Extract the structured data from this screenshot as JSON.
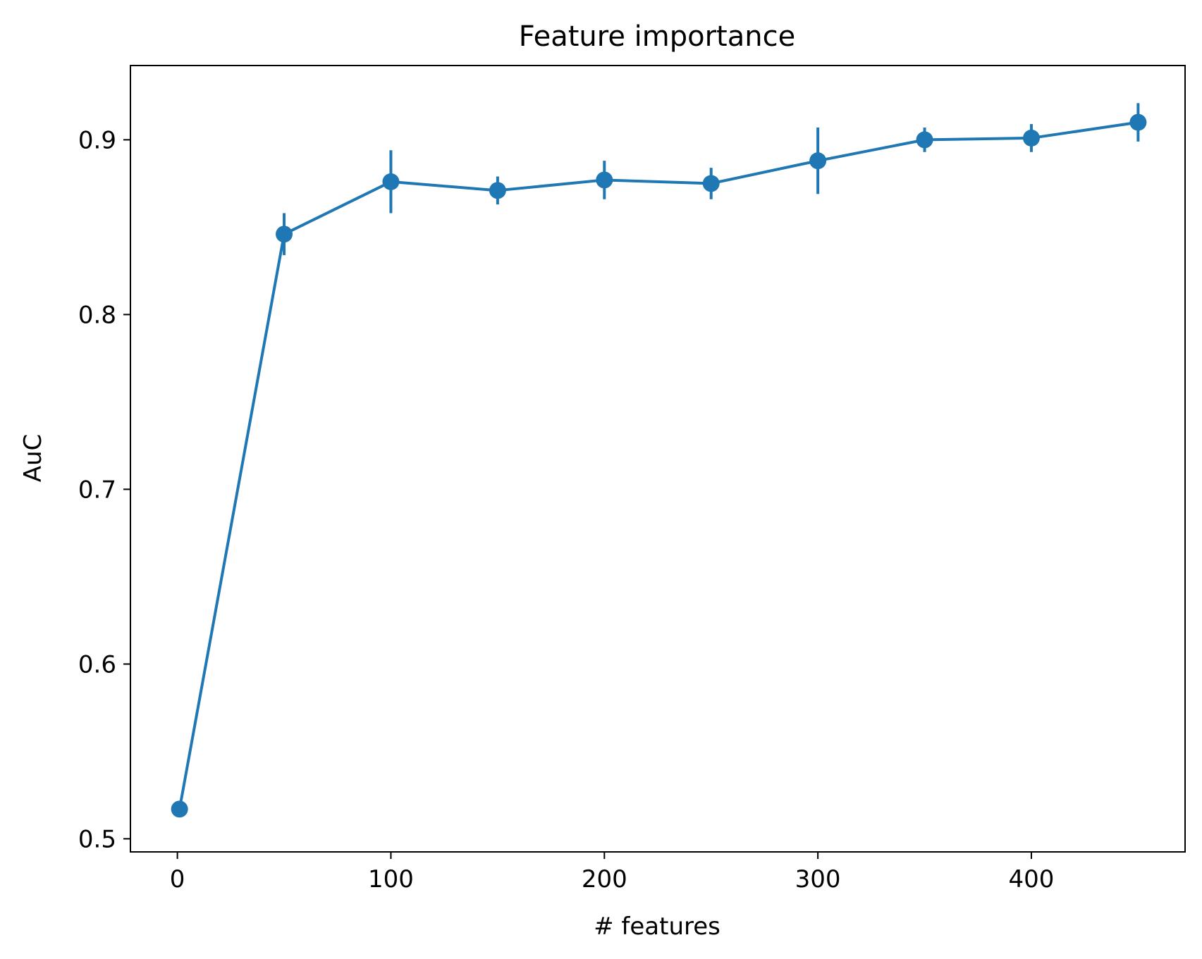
{
  "chart_data": {
    "type": "line",
    "title": "Feature importance",
    "xlabel": "# features",
    "ylabel": "AuC",
    "xlim": [
      -22,
      472
    ],
    "ylim": [
      0.4925,
      0.9425
    ],
    "x_ticks": [
      0,
      100,
      200,
      300,
      400
    ],
    "x_tick_labels": [
      "0",
      "100",
      "200",
      "300",
      "400"
    ],
    "y_ticks": [
      0.5,
      0.6,
      0.7,
      0.8,
      0.9
    ],
    "y_tick_labels": [
      "0.5",
      "0.6",
      "0.7",
      "0.8",
      "0.9"
    ],
    "grid": false,
    "legend": "none",
    "series": [
      {
        "color": "#1f77b4",
        "marker": "circle",
        "error_bars": true,
        "points": [
          {
            "x": 1,
            "y": 0.517,
            "err": 0.0
          },
          {
            "x": 50,
            "y": 0.846,
            "err": 0.012
          },
          {
            "x": 100,
            "y": 0.876,
            "err": 0.018
          },
          {
            "x": 150,
            "y": 0.871,
            "err": 0.008
          },
          {
            "x": 200,
            "y": 0.877,
            "err": 0.011
          },
          {
            "x": 250,
            "y": 0.875,
            "err": 0.009
          },
          {
            "x": 300,
            "y": 0.888,
            "err": 0.019
          },
          {
            "x": 350,
            "y": 0.9,
            "err": 0.007
          },
          {
            "x": 400,
            "y": 0.901,
            "err": 0.008
          },
          {
            "x": 450,
            "y": 0.91,
            "err": 0.011
          }
        ]
      }
    ]
  }
}
